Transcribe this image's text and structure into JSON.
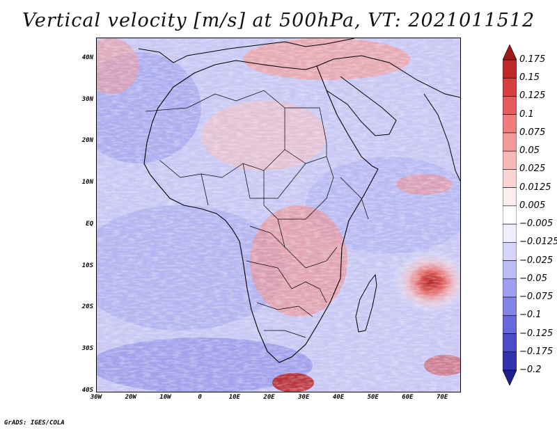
{
  "title": "Vertical velocity [m/s] at 500hPa, VT: 2021011512",
  "footer": "GrADS: IGES/COLA",
  "map": {
    "region": "Africa",
    "lon_range": [
      -30,
      75
    ],
    "lat_range": [
      -40,
      45
    ],
    "lat_labels": [
      "40N",
      "30N",
      "20N",
      "10N",
      "EQ",
      "10S",
      "20S",
      "30S",
      "40S"
    ],
    "lat_values": [
      40,
      30,
      20,
      10,
      0,
      -10,
      -20,
      -30,
      -40
    ],
    "lon_labels": [
      "30W",
      "20W",
      "10W",
      "0",
      "10E",
      "20E",
      "30E",
      "40E",
      "50E",
      "60E",
      "70E"
    ],
    "lon_values": [
      -30,
      -20,
      -10,
      0,
      10,
      20,
      30,
      40,
      50,
      60,
      70
    ]
  },
  "colorbar": {
    "levels": [
      "0.175",
      "0.15",
      "0.125",
      "0.1",
      "0.075",
      "0.05",
      "0.025",
      "0.0125",
      "0.005",
      "−0.005",
      "−0.0125",
      "−0.025",
      "−0.05",
      "−0.075",
      "−0.1",
      "−0.125",
      "−0.175",
      "−0.2"
    ],
    "colors": [
      "#a01818",
      "#c02828",
      "#d84040",
      "#e65c5c",
      "#f07c7c",
      "#f59a9a",
      "#f8b8b8",
      "#fbd4d4",
      "#fdeeee",
      "#ffffff",
      "#eeeeff",
      "#d6d6fb",
      "#bcbcf6",
      "#a0a0f0",
      "#8484e8",
      "#6868dc",
      "#4c4cc8",
      "#3232b0",
      "#1e1e8c"
    ]
  }
}
